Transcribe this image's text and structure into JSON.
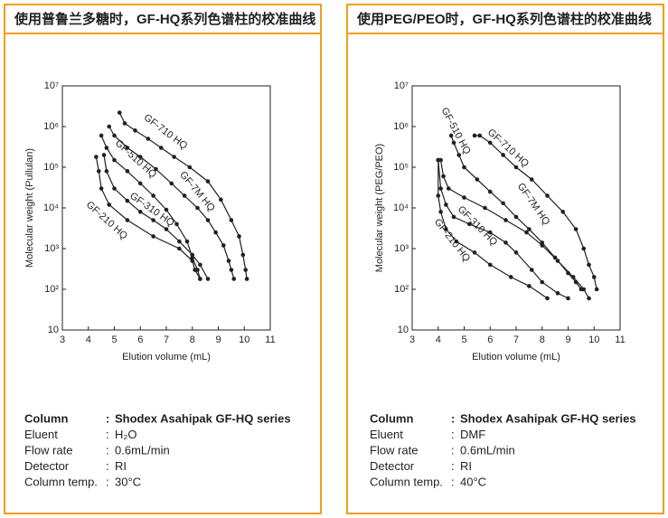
{
  "chart_data": [
    {
      "type": "line",
      "title": "使用普鲁兰多糖时，GF-HQ系列色谱柱的校准曲线",
      "x_label": "Elution volume (mL)",
      "y_label": "Molecular weight (Pullulan)",
      "xlim": [
        3,
        11
      ],
      "xticks": [
        3,
        4,
        5,
        6,
        7,
        8,
        9,
        10,
        11
      ],
      "ylim": [
        10,
        10000000
      ],
      "log_y": true,
      "markers": true,
      "yticks": [
        10,
        {
          "value": 100,
          "label": "10²"
        },
        {
          "value": 1000,
          "label": "10³"
        },
        {
          "value": 10000,
          "label": "10⁴"
        },
        {
          "value": 100000,
          "label": "10⁵"
        },
        {
          "value": 1000000,
          "label": "10⁶"
        },
        {
          "value": 10000000,
          "label": "10⁷"
        }
      ],
      "series": [
        {
          "name": "GF-710 HQ",
          "color": "#231f20",
          "x": [
            5.2,
            5.4,
            5.8,
            6.3,
            6.8,
            7.3,
            7.9,
            8.6,
            9.1,
            9.5,
            9.8,
            9.95,
            10.05,
            10.1
          ],
          "values": [
            2200000,
            1200000,
            800000,
            500000,
            300000,
            180000,
            100000,
            45000,
            16000,
            5000,
            2000,
            700,
            300,
            180
          ]
        },
        {
          "name": "GF-7M HQ",
          "color": "#231f20",
          "x": [
            4.8,
            5.0,
            5.5,
            6.0,
            6.6,
            7.2,
            7.7,
            8.2,
            8.6,
            8.9,
            9.2,
            9.4,
            9.5,
            9.6
          ],
          "values": [
            1000000,
            600000,
            300000,
            180000,
            90000,
            40000,
            20000,
            10000,
            5000,
            2500,
            1200,
            500,
            300,
            180
          ]
        },
        {
          "name": "GF-510 HQ",
          "color": "#231f20",
          "x": [
            4.5,
            4.7,
            5.0,
            5.5,
            6.0,
            6.5,
            7.0,
            7.4,
            7.8,
            8.0,
            8.2,
            8.3
          ],
          "values": [
            600000,
            300000,
            150000,
            80000,
            40000,
            20000,
            9000,
            4000,
            1500,
            600,
            300,
            180
          ]
        },
        {
          "name": "GF-310 HQ",
          "color": "#231f20",
          "x": [
            4.6,
            4.7,
            5.0,
            5.5,
            6.0,
            6.5,
            7.0,
            7.5,
            8.0,
            8.3,
            8.6
          ],
          "values": [
            200000,
            80000,
            30000,
            15000,
            8000,
            5000,
            3000,
            1500,
            700,
            400,
            180
          ]
        },
        {
          "name": "GF-210 HQ",
          "color": "#231f20",
          "x": [
            4.3,
            4.4,
            4.5,
            4.8,
            5.5,
            6.5,
            7.5,
            8.0,
            8.1,
            8.3
          ],
          "values": [
            180000,
            80000,
            30000,
            12000,
            5000,
            2000,
            1000,
            500,
            300,
            180
          ]
        }
      ]
    },
    {
      "type": "line",
      "title": "使用PEG/PEO时，GF-HQ系列色谱柱的校准曲线",
      "x_label": "Elution volume (mL)",
      "y_label": "Molecular weight (PEG/PEO)",
      "xlim": [
        3,
        11
      ],
      "xticks": [
        3,
        4,
        5,
        6,
        7,
        8,
        9,
        10,
        11
      ],
      "ylim": [
        10,
        10000000
      ],
      "log_y": true,
      "markers": true,
      "yticks": [
        10,
        {
          "value": 100,
          "label": "10²"
        },
        {
          "value": 1000,
          "label": "10³"
        },
        {
          "value": 10000,
          "label": "10⁴"
        },
        {
          "value": 100000,
          "label": "10⁵"
        },
        {
          "value": 1000000,
          "label": "10⁶"
        },
        {
          "value": 10000000,
          "label": "10⁷"
        }
      ],
      "series": [
        {
          "name": "GF-710 HQ",
          "color": "#231f20",
          "x": [
            5.4,
            5.6,
            6.0,
            6.5,
            7.0,
            7.6,
            8.2,
            8.8,
            9.3,
            9.6,
            9.8,
            10.0,
            10.1
          ],
          "values": [
            600000,
            600000,
            400000,
            200000,
            100000,
            50000,
            20000,
            8000,
            3000,
            1000,
            400,
            200,
            100
          ]
        },
        {
          "name": "GF-7M HQ",
          "color": "#231f20",
          "x": [
            4.1,
            4.2,
            4.4,
            5.0,
            5.8,
            6.6,
            7.4,
            8.0,
            8.6,
            9.2,
            9.6,
            9.8
          ],
          "values": [
            150000,
            60000,
            30000,
            18000,
            10000,
            5000,
            2500,
            1200,
            500,
            200,
            100,
            60
          ]
        },
        {
          "name": "GF-510 HQ",
          "color": "#231f20",
          "x": [
            4.5,
            4.6,
            4.8,
            5.0,
            5.5,
            6.0,
            6.5,
            7.0,
            7.5,
            8.0,
            8.5,
            9.0,
            9.3,
            9.5
          ],
          "values": [
            600000,
            400000,
            200000,
            100000,
            50000,
            25000,
            13000,
            6000,
            3000,
            1400,
            600,
            250,
            150,
            100
          ]
        },
        {
          "name": "GF-310 HQ",
          "color": "#231f20",
          "x": [
            4.0,
            4.1,
            4.3,
            4.6,
            5.2,
            6.0,
            6.6,
            7.0,
            7.6,
            8.0,
            8.6,
            9.0
          ],
          "values": [
            150000,
            30000,
            12000,
            6000,
            4000,
            2500,
            1400,
            800,
            300,
            150,
            80,
            60
          ]
        },
        {
          "name": "GF-210 HQ",
          "color": "#231f20",
          "x": [
            4.0,
            4.0,
            4.1,
            4.3,
            4.7,
            5.4,
            6.0,
            6.8,
            7.5,
            8.2
          ],
          "values": [
            150000,
            20000,
            8000,
            3000,
            1500,
            800,
            400,
            200,
            120,
            60
          ]
        }
      ]
    }
  ],
  "separator": ":",
  "conditions": [
    [
      [
        "Column",
        "Shodex Asahipak GF-HQ series"
      ],
      [
        "Eluent",
        "H₂O"
      ],
      [
        "Flow rate",
        "0.6mL/min"
      ],
      [
        "Detector",
        "RI"
      ],
      [
        "Column temp.",
        "30°C"
      ]
    ],
    [
      [
        "Column",
        "Shodex Asahipak GF-HQ series"
      ],
      [
        "Eluent",
        "DMF"
      ],
      [
        "Flow rate",
        "0.6mL/min"
      ],
      [
        "Detector",
        "RI"
      ],
      [
        "Column temp.",
        "40°C"
      ]
    ]
  ]
}
